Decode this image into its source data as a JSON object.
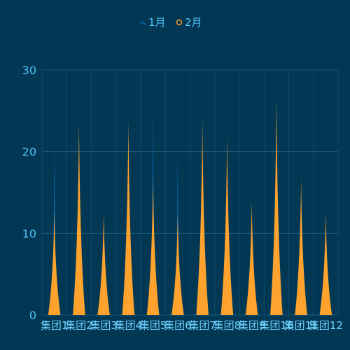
{
  "chart_data": {
    "type": "bar",
    "title": "",
    "xlabel": "",
    "ylabel": "",
    "categories": [
      "集团1",
      "集团2",
      "集团3",
      "集团4",
      "集团5",
      "集团6",
      "集团7",
      "集团8",
      "集团9",
      "集团10",
      "集团11",
      "集团12"
    ],
    "series": [
      {
        "name": "1月",
        "values": [
          22.5,
          18,
          10,
          20,
          27,
          21,
          18,
          18,
          12,
          22,
          14,
          10
        ],
        "color": "#0e6fc0"
      },
      {
        "name": "2月",
        "values": [
          13,
          23.6,
          12.7,
          23.8,
          17,
          12.4,
          24,
          22,
          14,
          26.7,
          16.8,
          12.7
        ],
        "color": "#ffa32e"
      }
    ],
    "ylim": [
      0,
      30
    ],
    "yticks": [
      0,
      10,
      20,
      30
    ],
    "grid": true,
    "legend_position": "top-center",
    "mark_shape": "pictorial-spike"
  },
  "colors": {
    "background": "#023854",
    "grid": "#1b5a78",
    "axis_text": "#4fc3f7"
  }
}
